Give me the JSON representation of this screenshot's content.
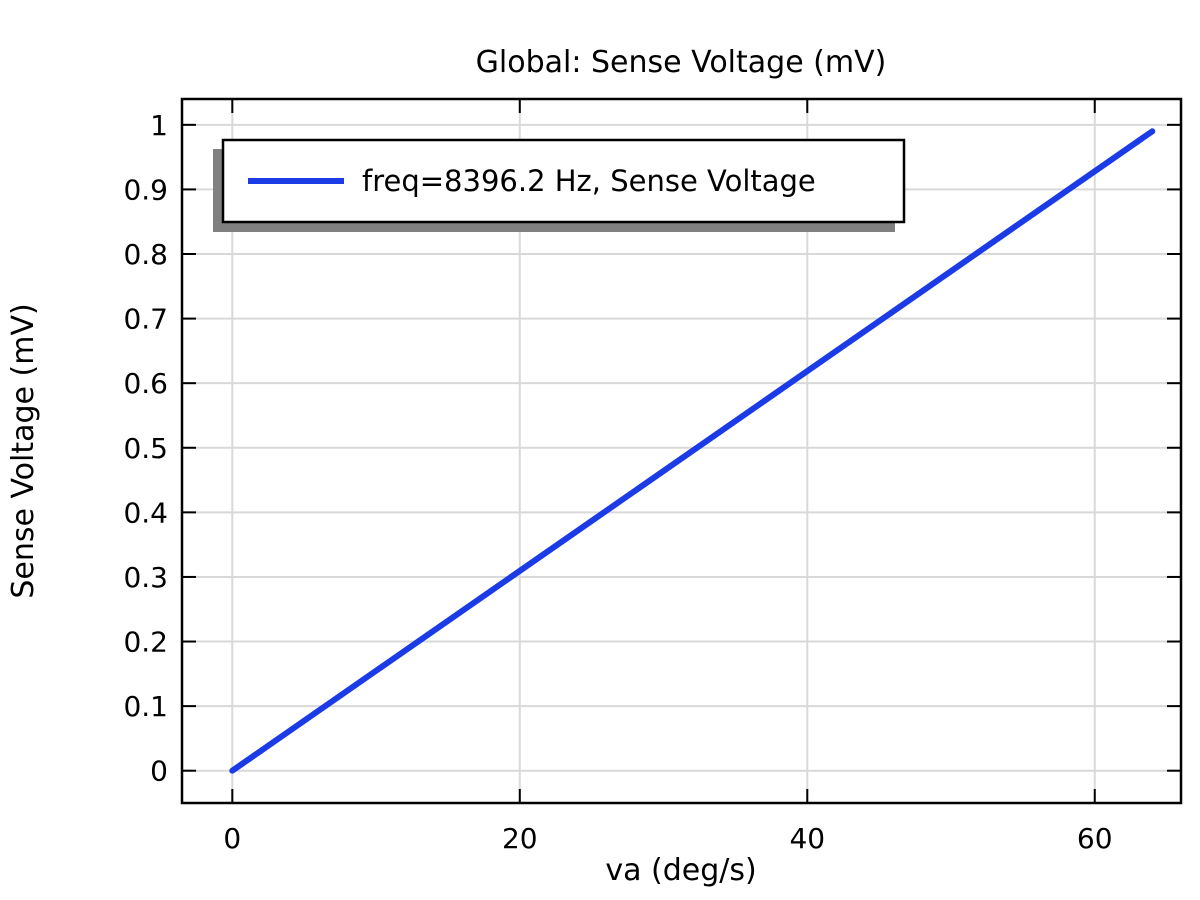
{
  "chart_data": {
    "type": "line",
    "title": "Global: Sense Voltage (mV)",
    "xlabel": "va (deg/s)",
    "ylabel": "Sense Voltage (mV)",
    "xlim": [
      -3.5,
      66
    ],
    "ylim": [
      -0.05,
      1.04
    ],
    "xticks": [
      0,
      20,
      40,
      60
    ],
    "yticks": [
      0,
      0.1,
      0.2,
      0.3,
      0.4,
      0.5,
      0.6,
      0.7,
      0.8,
      0.9,
      1
    ],
    "grid": true,
    "legend_position": "top-left",
    "series": [
      {
        "name": "freq=8396.2 Hz, Sense Voltage",
        "color": "#1a3be6",
        "x": [
          0,
          64
        ],
        "y": [
          0,
          0.99
        ]
      }
    ]
  }
}
